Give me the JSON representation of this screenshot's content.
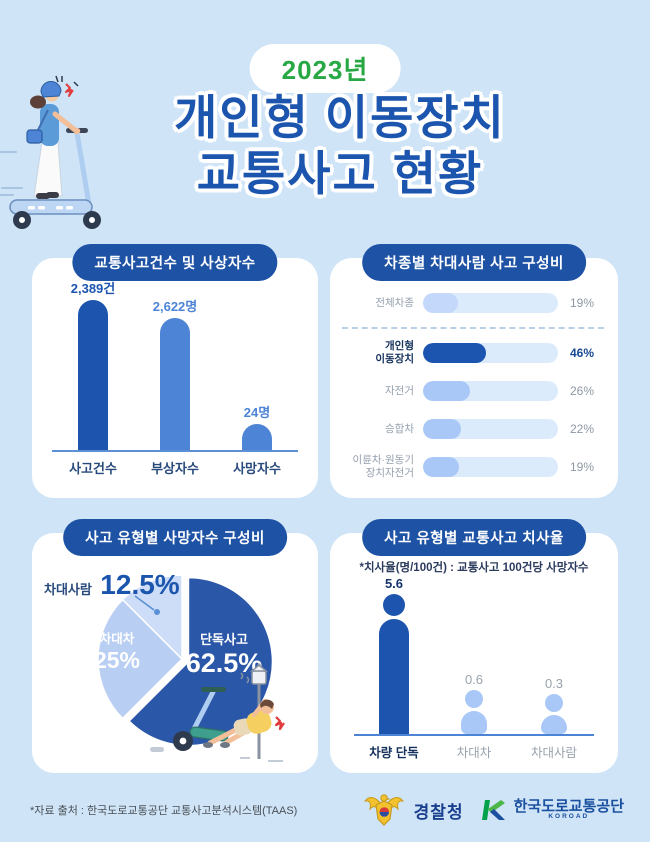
{
  "badge": {
    "label": "2023년",
    "color": "#27a845"
  },
  "title": {
    "line1": "개인형 이동장치",
    "line2": "교통사고 현황"
  },
  "colors": {
    "background": "#cfe4f6",
    "panel": "#ffffff",
    "header_pill": "#1d52a5",
    "primary_dark": "#1d55ae",
    "primary_medium": "#4d84d6",
    "primary_light": "#a9c8f7",
    "track": "#dcebfb",
    "axis": "#5b8fd6",
    "label_navy": "#27497c",
    "label_gray": "#95a0ae",
    "title_blue": "#1c55ae",
    "badge_green": "#27a845"
  },
  "panels": [
    {
      "header": "교통사고건수 및 사상자수"
    },
    {
      "header": "차종별 차대사람 사고 구성비"
    },
    {
      "header": "사고 유형별 사망자수 구성비"
    },
    {
      "header": "사고 유형별 교통사고 치사율",
      "note": "*치사율(명/100건) : 교통사고 100건당 사망자수"
    }
  ],
  "chart_data": [
    {
      "type": "bar",
      "title": "교통사고건수 및 사상자수",
      "categories": [
        "사고건수",
        "부상자수",
        "사망자수"
      ],
      "values": [
        2389,
        2622,
        24
      ],
      "value_labels": [
        "2,389건",
        "2,622명",
        "24명"
      ],
      "bar_colors": [
        "#1d55ae",
        "#4d84d6",
        "#4d84d6"
      ],
      "display_heights": [
        150,
        132,
        26
      ],
      "ylabel": "",
      "xlabel": "",
      "grid": false
    },
    {
      "type": "bar",
      "orientation": "horizontal",
      "title": "차종별 차대사람 사고 구성비",
      "categories": [
        "전체차종",
        "개인형 이동장치",
        "자전거",
        "승합차",
        "이륜차·원동기 장치자전거"
      ],
      "category_lines": [
        [
          "전체차종"
        ],
        [
          "개인형",
          "이동장치"
        ],
        [
          "자전거"
        ],
        [
          "승합차"
        ],
        [
          "이륜차·원동기",
          "장치자전거"
        ]
      ],
      "values": [
        19,
        46,
        26,
        22,
        19
      ],
      "value_labels": [
        "19%",
        "46%",
        "26%",
        "22%",
        "19%"
      ],
      "fill_fractions": [
        0.26,
        0.47,
        0.35,
        0.28,
        0.27
      ],
      "fill_colors": [
        "#c3d8fa",
        "#1b55b0",
        "#a9c8f7",
        "#a9c8f7",
        "#a9c8f7"
      ],
      "highlight_index": 1,
      "separator_after_index": 0,
      "xlim": [
        0,
        100
      ]
    },
    {
      "type": "pie",
      "title": "사고 유형별 사망자수 구성비",
      "start_angle_deg": 0,
      "clockwise": true,
      "slices": [
        {
          "label": "단독사고",
          "value": 62.5,
          "value_label": "62.5%",
          "color": "#2a57a8",
          "exploded": true
        },
        {
          "label": "차대차",
          "value": 25,
          "value_label": "25%",
          "color": "#b9cef3"
        },
        {
          "label": "차대사람",
          "value": 12.5,
          "value_label": "12.5%",
          "color": "#cdddf7",
          "outside_label": true
        }
      ]
    },
    {
      "type": "bar",
      "style": "pictogram-person",
      "title": "사고 유형별 교통사고 치사율",
      "note": "*치사율(명/100건) : 교통사고 100건당 사망자수",
      "categories": [
        "차량 단독",
        "차대차",
        "차대사람"
      ],
      "values": [
        5.6,
        0.6,
        0.3
      ],
      "value_labels": [
        "5.6",
        "0.6",
        "0.3"
      ],
      "display_heights": [
        140,
        44,
        40
      ],
      "bar_colors": [
        "#1d55ae",
        "#a9c8f7",
        "#a9c8f7"
      ],
      "highlight_index": 0
    }
  ],
  "footer": {
    "source": "*자료 출처 : 한국도로교통공단 교통사고분석시스템(TAAS)",
    "police_label": "경찰청",
    "koroad_label": "한국도로교통공단",
    "koroad_sub": "KOROAD"
  }
}
